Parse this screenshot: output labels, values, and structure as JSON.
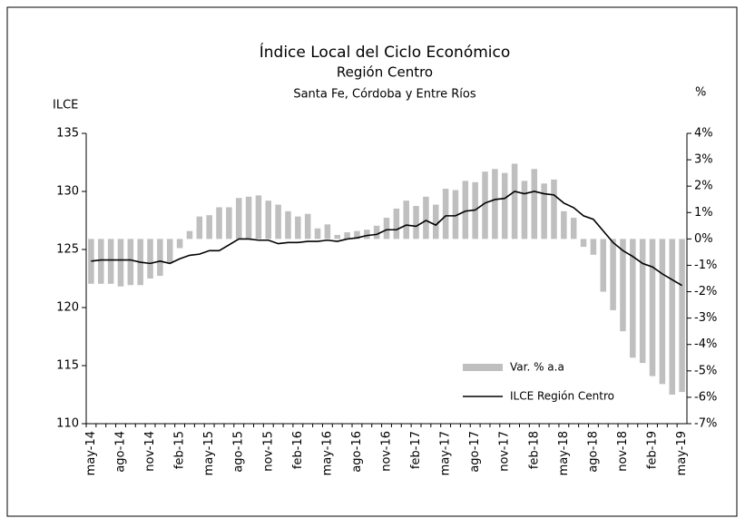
{
  "chart_data": {
    "type": "bar-line",
    "title": "Índice Local del Ciclo Económico",
    "subtitle": "Región Centro",
    "subtitle2": "Santa Fe, Córdoba y Entre Ríos",
    "y_label": "ILCE",
    "y2_label": "%",
    "categories": [
      "may-14",
      null,
      null,
      "ago-14",
      null,
      null,
      "nov-14",
      null,
      null,
      "feb-15",
      null,
      null,
      "may-15",
      null,
      null,
      "ago-15",
      null,
      null,
      "nov-15",
      null,
      null,
      "feb-16",
      null,
      null,
      "may-16",
      null,
      null,
      "ago-16",
      null,
      null,
      "nov-16",
      null,
      null,
      "feb-17",
      null,
      null,
      "may-17",
      null,
      null,
      "ago-17",
      null,
      null,
      "nov-17",
      null,
      null,
      "feb-18",
      null,
      null,
      "may-18",
      null,
      null,
      "ago-18",
      null,
      null,
      "nov-18",
      null,
      null,
      "feb-19",
      null,
      null,
      "may-19"
    ],
    "series": [
      {
        "name": "Var. % a.a",
        "color": "#bfbfbf",
        "axis": "y2",
        "kind": "bar",
        "values": [
          -1.7,
          -1.7,
          -1.7,
          -1.8,
          -1.75,
          -1.75,
          -1.5,
          -1.4,
          -0.9,
          -0.35,
          0.3,
          0.85,
          0.9,
          1.2,
          1.2,
          1.55,
          1.6,
          1.65,
          1.45,
          1.3,
          1.05,
          0.85,
          0.95,
          0.4,
          0.55,
          0.15,
          0.25,
          0.3,
          0.35,
          0.5,
          0.8,
          1.15,
          1.45,
          1.25,
          1.6,
          1.3,
          1.9,
          1.85,
          2.2,
          2.15,
          2.55,
          2.65,
          2.5,
          2.85,
          2.2,
          2.65,
          2.1,
          2.25,
          1.05,
          0.8,
          -0.3,
          -0.6,
          -2.0,
          -2.7,
          -3.5,
          -4.5,
          -4.7,
          -5.2,
          -5.5,
          -5.9,
          -5.8
        ]
      },
      {
        "name": "ILCE Región Centro",
        "color": "#000000",
        "axis": "y",
        "kind": "line",
        "values": [
          124.0,
          124.1,
          124.1,
          124.1,
          124.1,
          123.9,
          123.8,
          124.0,
          123.8,
          124.2,
          124.5,
          124.6,
          124.9,
          124.9,
          125.4,
          125.9,
          125.9,
          125.8,
          125.8,
          125.5,
          125.6,
          125.6,
          125.7,
          125.7,
          125.8,
          125.7,
          125.9,
          126.0,
          126.2,
          126.3,
          126.7,
          126.7,
          127.1,
          127.0,
          127.5,
          127.1,
          127.9,
          127.9,
          128.3,
          128.4,
          129.0,
          129.3,
          129.4,
          130.0,
          129.8,
          130.0,
          129.8,
          129.7,
          129.0,
          128.6,
          127.9,
          127.6,
          126.6,
          125.6,
          124.9,
          124.4,
          123.8,
          123.5,
          122.9,
          122.4,
          121.9
        ]
      }
    ],
    "ylim": [
      110,
      135
    ],
    "yticks": [
      110,
      115,
      120,
      125,
      130,
      135
    ],
    "y2lim": [
      -7,
      4
    ],
    "y2ticks": [
      {
        "value": -7,
        "label": "-7%"
      },
      {
        "value": -6,
        "label": "-6%"
      },
      {
        "value": -5,
        "label": "-5%"
      },
      {
        "value": -4,
        "label": "-4%"
      },
      {
        "value": -3,
        "label": "-3%"
      },
      {
        "value": -2,
        "label": "-2%"
      },
      {
        "value": -1,
        "label": "-1%"
      },
      {
        "value": 0,
        "label": "0%"
      },
      {
        "value": 1,
        "label": "1%"
      },
      {
        "value": 2,
        "label": "2%"
      },
      {
        "value": 3,
        "label": "3%"
      },
      {
        "value": 4,
        "label": "4%"
      }
    ],
    "legend": "lower-right"
  }
}
